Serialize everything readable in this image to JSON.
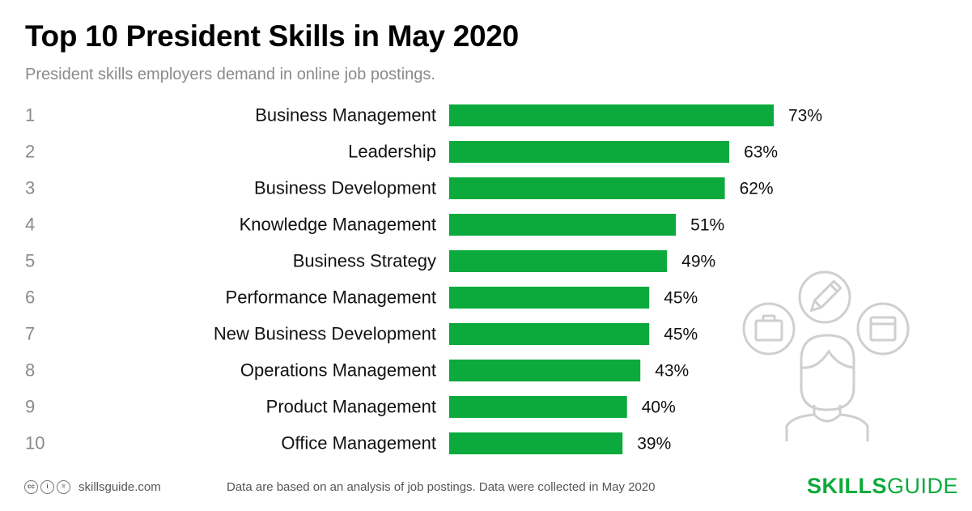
{
  "header": {
    "title": "Top 10 President Skills in May 2020",
    "subtitle": "President skills employers demand in online job postings."
  },
  "chart_data": {
    "type": "bar",
    "orientation": "horizontal",
    "title": "Top 10 President Skills in May 2020",
    "xlabel": "",
    "ylabel": "",
    "xlim": [
      0,
      100
    ],
    "ranks": [
      "1",
      "2",
      "3",
      "4",
      "5",
      "6",
      "7",
      "8",
      "9",
      "10"
    ],
    "categories": [
      "Business Management",
      "Leadership",
      "Business Development",
      "Knowledge Management",
      "Business Strategy",
      "Performance Management",
      "New Business Development",
      "Operations Management",
      "Product Management",
      "Office Management"
    ],
    "values": [
      73,
      63,
      62,
      51,
      49,
      45,
      45,
      43,
      40,
      39
    ],
    "value_labels": [
      "73%",
      "63%",
      "62%",
      "51%",
      "49%",
      "45%",
      "45%",
      "43%",
      "40%",
      "39%"
    ],
    "bar_color": "#0caa3c",
    "grid": false
  },
  "footer": {
    "license_icons": [
      "cc-icon",
      "by-icon",
      "nd-icon"
    ],
    "site": "skillsguide.com",
    "note": "Data are based on an analysis of job postings. Data were collected in May 2020",
    "brand_bold": "SKILLS",
    "brand_rest": "GUIDE"
  },
  "colors": {
    "accent": "#0caa3c",
    "icon_gray": "#cfcfcf",
    "muted_text": "#8a8a8a"
  }
}
